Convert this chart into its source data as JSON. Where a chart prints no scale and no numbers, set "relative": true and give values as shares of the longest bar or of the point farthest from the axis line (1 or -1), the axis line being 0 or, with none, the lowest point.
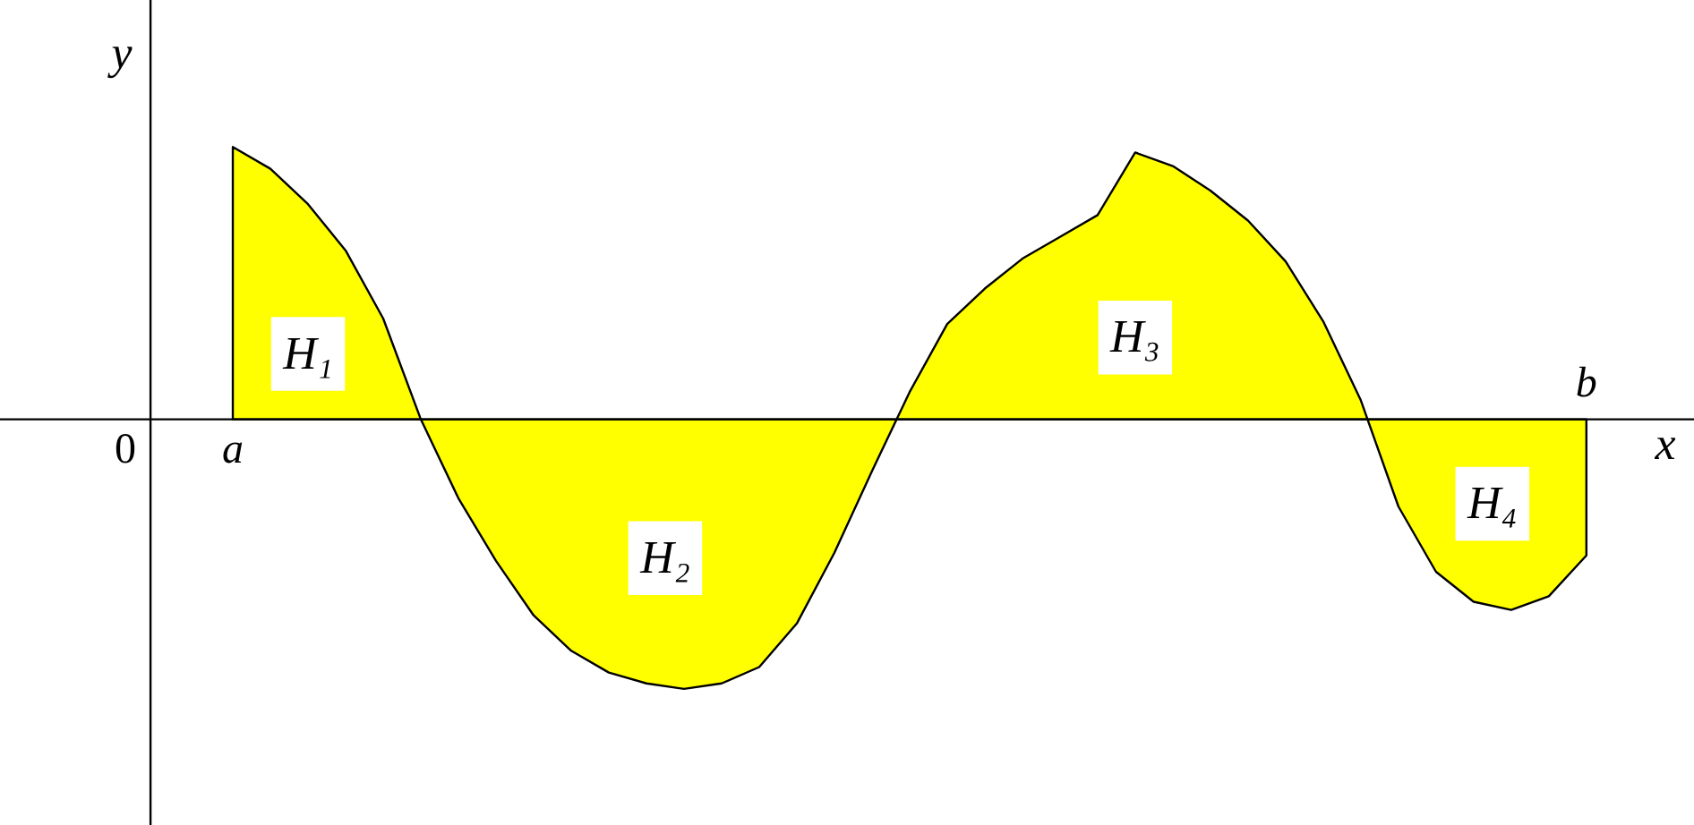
{
  "chart_data": {
    "type": "area",
    "relative": true,
    "xlabel": "x",
    "ylabel": "y",
    "grid": false,
    "categories": [
      "a",
      null,
      null,
      null,
      null,
      null,
      null,
      null,
      null,
      null,
      null,
      null,
      null,
      null,
      null,
      null,
      null,
      null,
      null,
      null,
      null,
      null,
      null,
      null,
      null,
      null,
      null,
      null,
      null,
      null,
      null,
      null,
      null,
      null,
      null,
      null,
      "b"
    ],
    "series": [
      {
        "color": "#ffff00",
        "values": [
          1.0,
          0.92,
          0.79,
          0.62,
          0.37,
          0,
          -0.29,
          -0.52,
          -0.72,
          -0.85,
          -0.93,
          -0.97,
          -0.99,
          -0.97,
          -0.91,
          -0.75,
          -0.49,
          -0.19,
          0.1,
          0.35,
          0.48,
          0.59,
          0.67,
          0.75,
          0.98,
          0.93,
          0.84,
          0.73,
          0.58,
          0.36,
          0.07,
          -0.32,
          -0.56,
          -0.67,
          -0.7,
          -0.65,
          -0.5
        ]
      }
    ],
    "annotations": [
      "0",
      {
        "text": "H₁",
        "y": 0.24
      },
      {
        "text": "H₂",
        "y": -0.51
      },
      {
        "text": "H₃",
        "y": 0.3
      },
      {
        "text": "H₄",
        "y": -0.31
      }
    ]
  }
}
